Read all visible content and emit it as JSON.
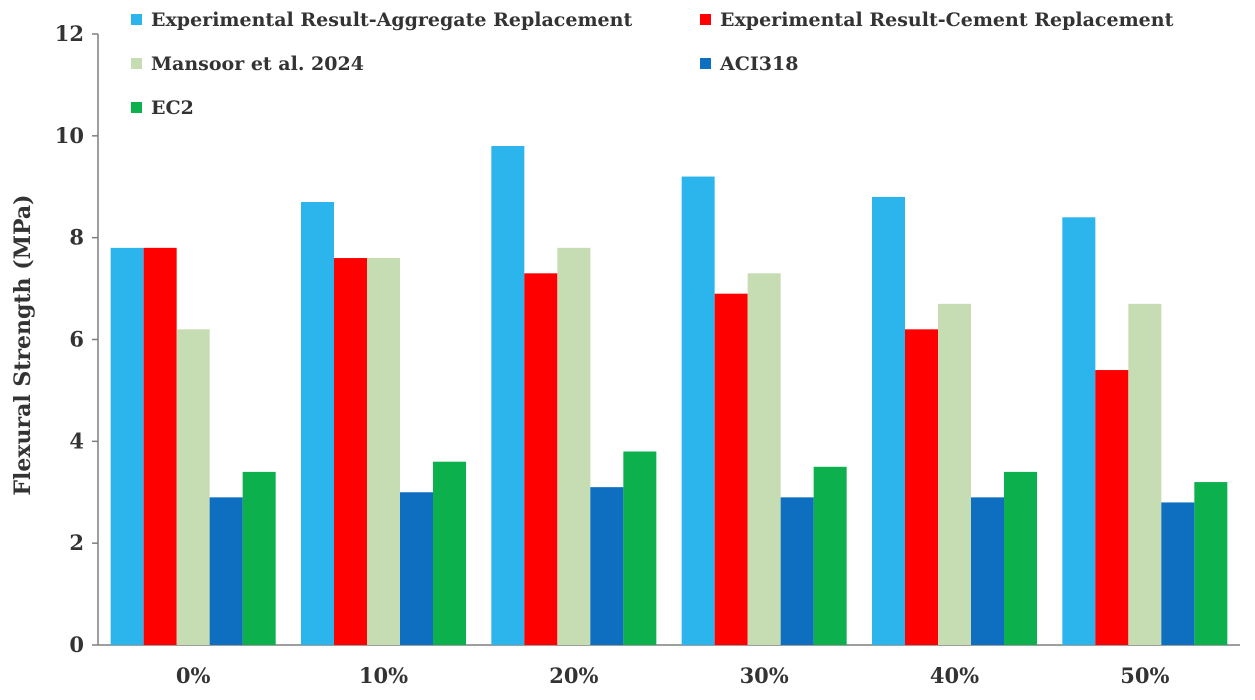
{
  "chart_data": {
    "type": "bar",
    "title": "",
    "xlabel": "",
    "ylabel": "Flexural Strength (MPa)",
    "ylim": [
      0,
      12
    ],
    "yticks": [
      0,
      2,
      4,
      6,
      8,
      10,
      12
    ],
    "grid": false,
    "legend_position": "top",
    "categories": [
      "0%",
      "10%",
      "20%",
      "30%",
      "40%",
      "50%"
    ],
    "series": [
      {
        "name": "Experimental Result-Aggregate Replacement",
        "color": "#2bb5ec",
        "values": [
          7.8,
          8.7,
          9.8,
          9.2,
          8.8,
          8.4
        ]
      },
      {
        "name": "Experimental Result-Cement Replacement",
        "color": "#ff0000",
        "values": [
          7.8,
          7.6,
          7.3,
          6.9,
          6.2,
          5.4
        ]
      },
      {
        "name": "Mansoor et al. 2024",
        "color": "#c6dcb2",
        "values": [
          6.2,
          7.6,
          7.8,
          7.3,
          6.7,
          6.7
        ]
      },
      {
        "name": "ACI318",
        "color": "#0e6ebf",
        "values": [
          2.9,
          3.0,
          3.1,
          2.9,
          2.9,
          2.8
        ]
      },
      {
        "name": "EC2",
        "color": "#0cb04c",
        "values": [
          3.4,
          3.6,
          3.8,
          3.5,
          3.4,
          3.2
        ]
      }
    ]
  }
}
